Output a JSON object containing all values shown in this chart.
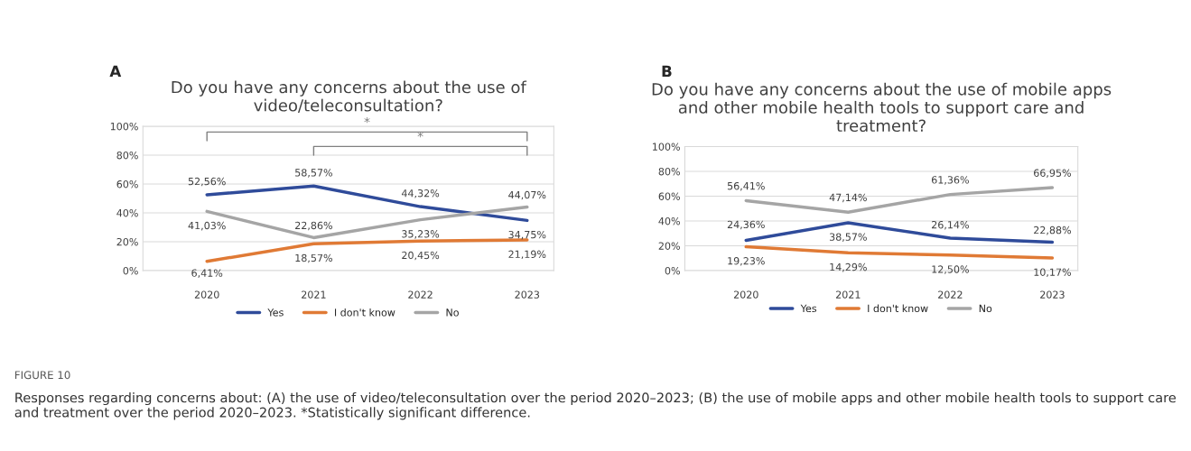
{
  "chart_data": [
    {
      "type": "line",
      "title": "Do you have any concerns about the use of\nvideo/teleconsultation?",
      "categories": [
        "2020",
        "2021",
        "2022",
        "2023"
      ],
      "series": [
        {
          "name": "Yes",
          "color": "#2f4b9a",
          "values": [
            52.56,
            58.57,
            44.32,
            34.75
          ],
          "value_labels": [
            "52,56%",
            "58,57%",
            "44,32%",
            "34,75%"
          ]
        },
        {
          "name": "I don't know",
          "color": "#e07a35",
          "values": [
            6.41,
            18.57,
            20.45,
            21.19
          ],
          "value_labels": [
            "6,41%",
            "18,57%",
            "20,45%",
            "21,19%"
          ]
        },
        {
          "name": "No",
          "color": "#a5a5a5",
          "values": [
            41.03,
            22.86,
            35.23,
            44.07
          ],
          "value_labels": [
            "41,03%",
            "22,86%",
            "35,23%",
            "44,07%"
          ]
        }
      ],
      "ylim": [
        0,
        100
      ],
      "yticks": [
        {
          "value": 0,
          "label": "0%"
        },
        {
          "value": 20,
          "label": "20%"
        },
        {
          "value": 40,
          "label": "40%"
        },
        {
          "value": 60,
          "label": "60%"
        },
        {
          "value": 80,
          "label": "80%"
        },
        {
          "value": 100,
          "label": "100%"
        }
      ],
      "grid": "y",
      "legend": "bottom",
      "marker": "none",
      "line_style": "solid",
      "annotations": [
        "*",
        "*",
        "A",
        "FIGURE 10",
        "Responses regarding concerns about: (A) the use of video/teleconsultation over the period 2020–2023; (B) the use of mobile apps and other mobile health tools to support care and treatment over the period 2020–2023. *Statistically significant difference."
      ]
    },
    {
      "type": "line",
      "title": "Do you have any concerns about the use of mobile apps\nand other mobile health tools to support care and\ntreatment?",
      "categories": [
        "2020",
        "2021",
        "2022",
        "2023"
      ],
      "series": [
        {
          "name": "Yes",
          "color": "#2f4b9a",
          "values": [
            24.36,
            38.57,
            26.14,
            22.88
          ],
          "value_labels": [
            "24,36%",
            "38,57%",
            "26,14%",
            "22,88%"
          ]
        },
        {
          "name": "I don't know",
          "color": "#e07a35",
          "values": [
            19.23,
            14.29,
            12.5,
            10.17
          ],
          "value_labels": [
            "19,23%",
            "14,29%",
            "12,50%",
            "10,17%"
          ]
        },
        {
          "name": "No",
          "color": "#a5a5a5",
          "values": [
            56.41,
            47.14,
            61.36,
            66.95
          ],
          "value_labels": [
            "56,41%",
            "47,14%",
            "61,36%",
            "66,95%"
          ]
        }
      ],
      "ylim": [
        0,
        100
      ],
      "yticks": [
        {
          "value": 0,
          "label": "0%"
        },
        {
          "value": 20,
          "label": "20%"
        },
        {
          "value": 40,
          "label": "40%"
        },
        {
          "value": 60,
          "label": "60%"
        },
        {
          "value": 80,
          "label": "80%"
        },
        {
          "value": 100,
          "label": "100%"
        }
      ],
      "grid": "y",
      "legend": "bottom",
      "marker": "none",
      "line_style": "solid",
      "annotations": [
        "B"
      ]
    }
  ]
}
